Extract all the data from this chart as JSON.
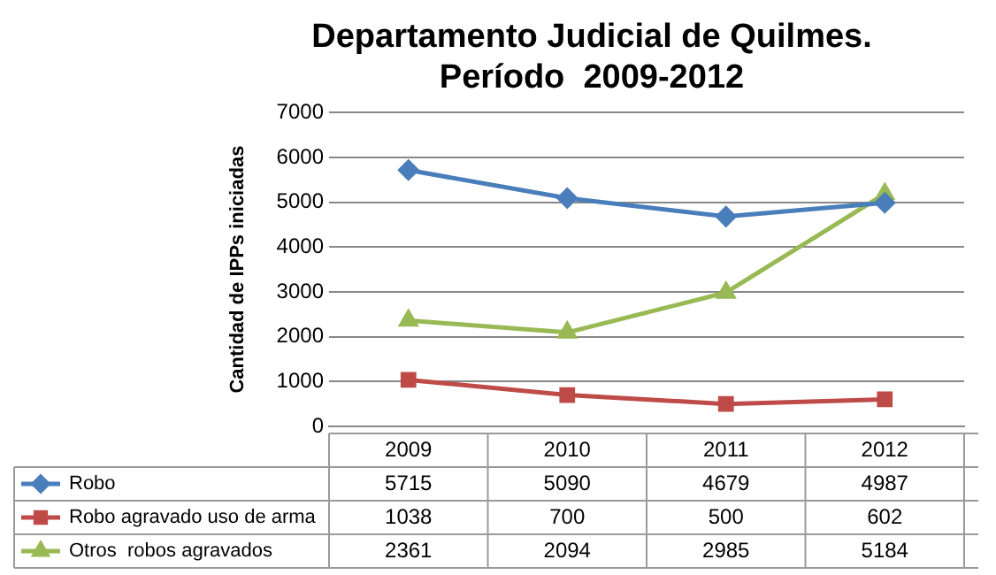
{
  "chart_data": {
    "type": "line",
    "title": "Departamento Judicial de Quilmes. Período  2009-2012",
    "ylabel": "Cantidad de IPPs iniciadas",
    "categories": [
      "2009",
      "2010",
      "2011",
      "2012"
    ],
    "series": [
      {
        "name": "Robo",
        "color": "#4a7ebb",
        "marker": "diamond",
        "values": [
          5715,
          5090,
          4679,
          4987
        ]
      },
      {
        "name": "Robo agravado uso de arma",
        "color": "#be4b48",
        "marker": "square",
        "values": [
          1038,
          700,
          500,
          602
        ]
      },
      {
        "name": "Otros  robos agravados",
        "color": "#98b954",
        "marker": "triangle",
        "values": [
          2361,
          2094,
          2985,
          5184
        ]
      }
    ],
    "ylim": [
      0,
      7000
    ],
    "yticks": [
      0,
      1000,
      2000,
      3000,
      4000,
      5000,
      6000,
      7000
    ],
    "grid": "y",
    "legend": "bottom",
    "data_labels": true
  }
}
